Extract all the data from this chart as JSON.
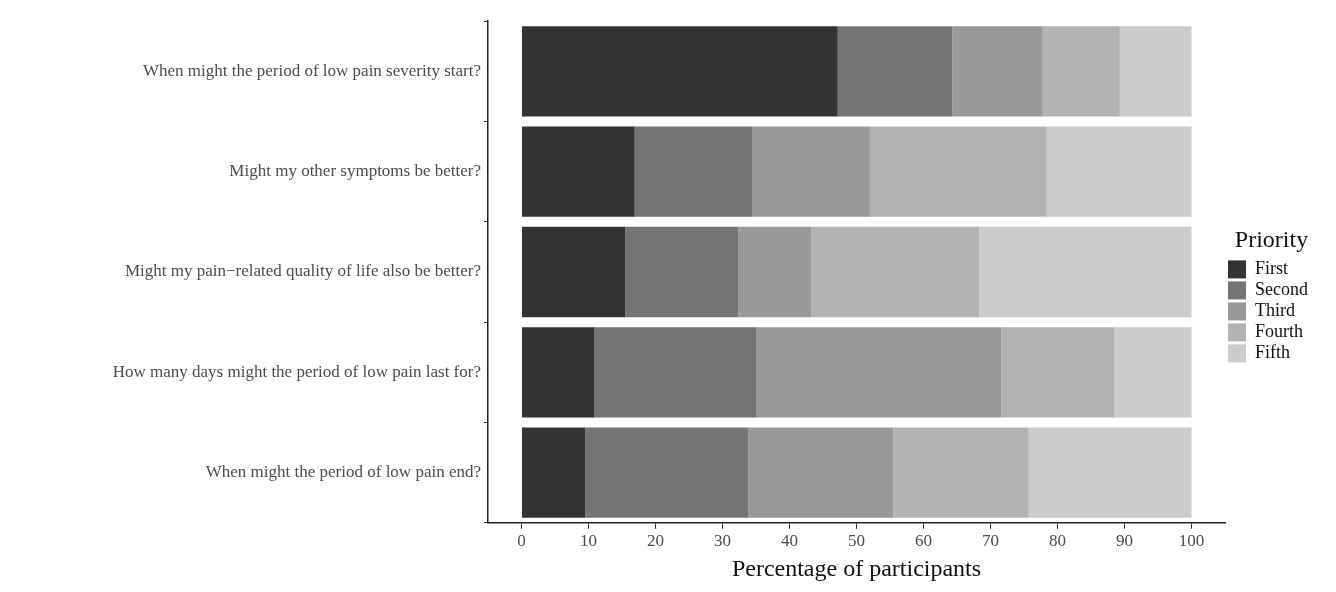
{
  "chart_data": {
    "type": "bar",
    "orientation": "horizontal",
    "stacked": true,
    "xlabel": "Percentage of participants",
    "legend_title": "Priority",
    "legend": "right",
    "categories": [
      "When might the period of low pain severity start?",
      "Might my other symptoms be better?",
      "Might my pain−related quality of life also be better?",
      "How many days might the period of low pain last for?",
      "When might the period of low pain end?"
    ],
    "series": [
      {
        "name": "First",
        "color": "#333333",
        "values": [
          47.2,
          16.9,
          15.5,
          10.9,
          9.5
        ]
      },
      {
        "name": "Second",
        "color": "#747474",
        "values": [
          17.1,
          17.5,
          16.9,
          24.2,
          24.3
        ]
      },
      {
        "name": "Third",
        "color": "#999999",
        "values": [
          13.5,
          17.6,
          10.9,
          36.5,
          21.7
        ]
      },
      {
        "name": "Fourth",
        "color": "#b3b3b3",
        "values": [
          11.5,
          26.4,
          25.0,
          16.9,
          20.2
        ]
      },
      {
        "name": "Fifth",
        "color": "#cccccc",
        "values": [
          10.7,
          21.6,
          31.7,
          11.5,
          24.3
        ]
      }
    ],
    "xlim": [
      -5,
      105
    ],
    "xticks": [
      0,
      10,
      20,
      30,
      40,
      50,
      60,
      70,
      80,
      90,
      100
    ]
  }
}
